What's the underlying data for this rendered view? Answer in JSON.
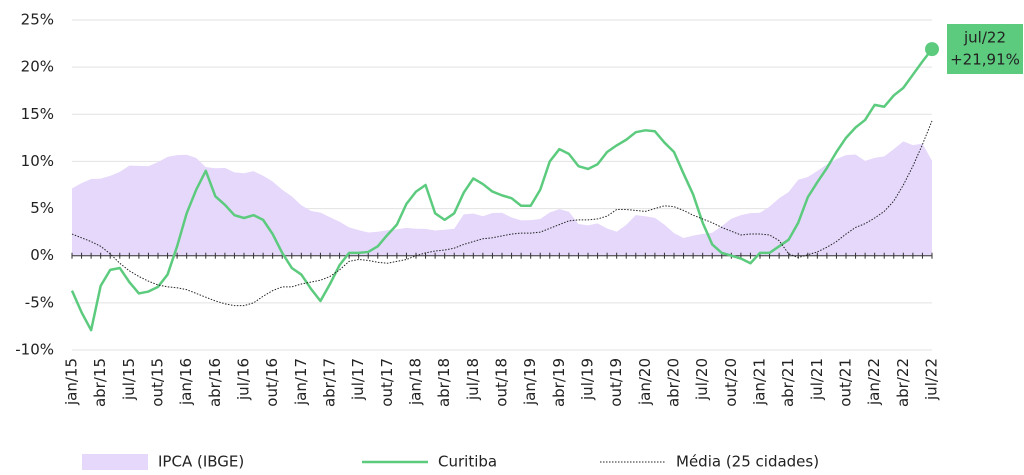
{
  "chart_data": {
    "type": "line",
    "categories": [
      "jan/15",
      null,
      null,
      "abr/15",
      null,
      null,
      "jul/15",
      null,
      null,
      "out/15",
      null,
      null,
      "jan/16",
      null,
      null,
      "abr/16",
      null,
      null,
      "jul/16",
      null,
      null,
      "out/16",
      null,
      null,
      "jan/17",
      null,
      null,
      "abr/17",
      null,
      null,
      "jul/17",
      null,
      null,
      "out/17",
      null,
      null,
      "jan/18",
      null,
      null,
      "abr/18",
      null,
      null,
      "jul/18",
      null,
      null,
      "out/18",
      null,
      null,
      "jan/19",
      null,
      null,
      "abr/19",
      null,
      null,
      "jul/19",
      null,
      null,
      "out/19",
      null,
      null,
      "jan/20",
      null,
      null,
      "abr/20",
      null,
      null,
      "jul/20",
      null,
      null,
      "out/20",
      null,
      null,
      "jan/21",
      null,
      null,
      "abr/21",
      null,
      null,
      "jul/21",
      null,
      null,
      "out/21",
      null,
      null,
      "jan/22",
      null,
      null,
      "abr/22",
      null,
      null,
      "jul/22"
    ],
    "series": [
      {
        "name": "IPCA (IBGE)",
        "kind": "area",
        "color": "#e5d8fb",
        "values": [
          7.14,
          7.7,
          8.13,
          8.17,
          8.47,
          8.89,
          9.56,
          9.53,
          9.49,
          9.93,
          10.48,
          10.67,
          10.71,
          10.36,
          9.39,
          9.28,
          9.32,
          8.84,
          8.74,
          8.97,
          8.48,
          7.87,
          6.99,
          6.29,
          5.35,
          4.76,
          4.57,
          4.08,
          3.6,
          3.0,
          2.71,
          2.46,
          2.54,
          2.7,
          2.8,
          2.95,
          2.86,
          2.84,
          2.68,
          2.76,
          2.86,
          4.39,
          4.48,
          4.19,
          4.53,
          4.56,
          4.05,
          3.75,
          3.78,
          3.89,
          4.58,
          4.94,
          4.66,
          3.37,
          3.22,
          3.43,
          2.89,
          2.54,
          3.27,
          4.31,
          4.19,
          4.01,
          3.3,
          2.4,
          1.88,
          2.13,
          2.31,
          2.44,
          3.14,
          3.92,
          4.31,
          4.52,
          4.56,
          5.2,
          6.1,
          6.76,
          8.06,
          8.35,
          8.99,
          9.68,
          10.25,
          10.67,
          10.74,
          10.06,
          10.38,
          10.54,
          11.3,
          12.13,
          11.73,
          11.89,
          10.07
        ]
      },
      {
        "name": "Curitiba",
        "kind": "line",
        "color": "#5ccb7e",
        "values": [
          -3.7,
          -6,
          -7.9,
          -3.2,
          -1.5,
          -1.3,
          -2.8,
          -4,
          -3.8,
          -3.3,
          -2,
          1,
          4.5,
          7,
          9,
          6.3,
          5.4,
          4.3,
          4,
          4.3,
          3.8,
          2.3,
          0.3,
          -1.3,
          -2,
          -3.5,
          -4.8,
          -3,
          -1,
          0.3,
          0.3,
          0.4,
          1,
          2.2,
          3.3,
          5.5,
          6.8,
          7.5,
          4.5,
          3.8,
          4.5,
          6.7,
          8.2,
          7.6,
          6.8,
          6.4,
          6.1,
          5.3,
          5.3,
          7,
          10,
          11.3,
          10.8,
          9.5,
          9.2,
          9.7,
          11,
          11.7,
          12.3,
          13.1,
          13.3,
          13.2,
          12,
          11,
          8.7,
          6.5,
          3.5,
          1.2,
          0.3,
          0,
          -0.3,
          -0.8,
          0.3,
          0.3,
          1,
          1.7,
          3.5,
          6.2,
          7.8,
          9.3,
          11,
          12.5,
          13.6,
          14.4,
          16,
          15.8,
          17,
          17.8,
          19.2,
          20.6,
          21.91
        ]
      },
      {
        "name": "Média (25 cidades)",
        "kind": "dotted",
        "color": "#222222",
        "values": [
          2.3,
          1.9,
          1.5,
          1,
          0.2,
          -0.8,
          -1.6,
          -2.2,
          -2.7,
          -3.1,
          -3.3,
          -3.4,
          -3.6,
          -4,
          -4.4,
          -4.8,
          -5.1,
          -5.3,
          -5.3,
          -5,
          -4.3,
          -3.7,
          -3.3,
          -3.3,
          -3,
          -2.8,
          -2.6,
          -2.2,
          -1.5,
          -0.6,
          -0.4,
          -0.5,
          -0.7,
          -0.8,
          -0.6,
          -0.4,
          0,
          0.3,
          0.5,
          0.6,
          0.8,
          1.2,
          1.5,
          1.8,
          1.9,
          2.1,
          2.3,
          2.4,
          2.4,
          2.5,
          2.9,
          3.3,
          3.7,
          3.8,
          3.8,
          3.9,
          4.2,
          4.9,
          4.9,
          4.8,
          4.7,
          5,
          5.3,
          5.2,
          4.8,
          4.3,
          3.9,
          3.5,
          3,
          2.6,
          2.2,
          2.3,
          2.3,
          2.2,
          1.6,
          0.2,
          -0.2,
          0.1,
          0.4,
          0.9,
          1.5,
          2.3,
          3,
          3.4,
          4,
          4.7,
          5.8,
          7.5,
          9.5,
          11.8,
          14.3
        ]
      }
    ],
    "annotation": [
      "jul/22",
      "+21,91%"
    ],
    "ylim": [
      -10,
      25
    ],
    "yticks": [
      {
        "value": -10,
        "label": "-10%"
      },
      {
        "value": -5,
        "label": "-5%"
      },
      {
        "value": 0,
        "label": "0%"
      },
      {
        "value": 5,
        "label": "5%"
      },
      {
        "value": 10,
        "label": "10%"
      },
      {
        "value": 15,
        "label": "15%"
      },
      {
        "value": 20,
        "label": "20%"
      },
      {
        "value": 25,
        "label": "25%"
      }
    ],
    "grid": true,
    "legend": "bottom"
  }
}
